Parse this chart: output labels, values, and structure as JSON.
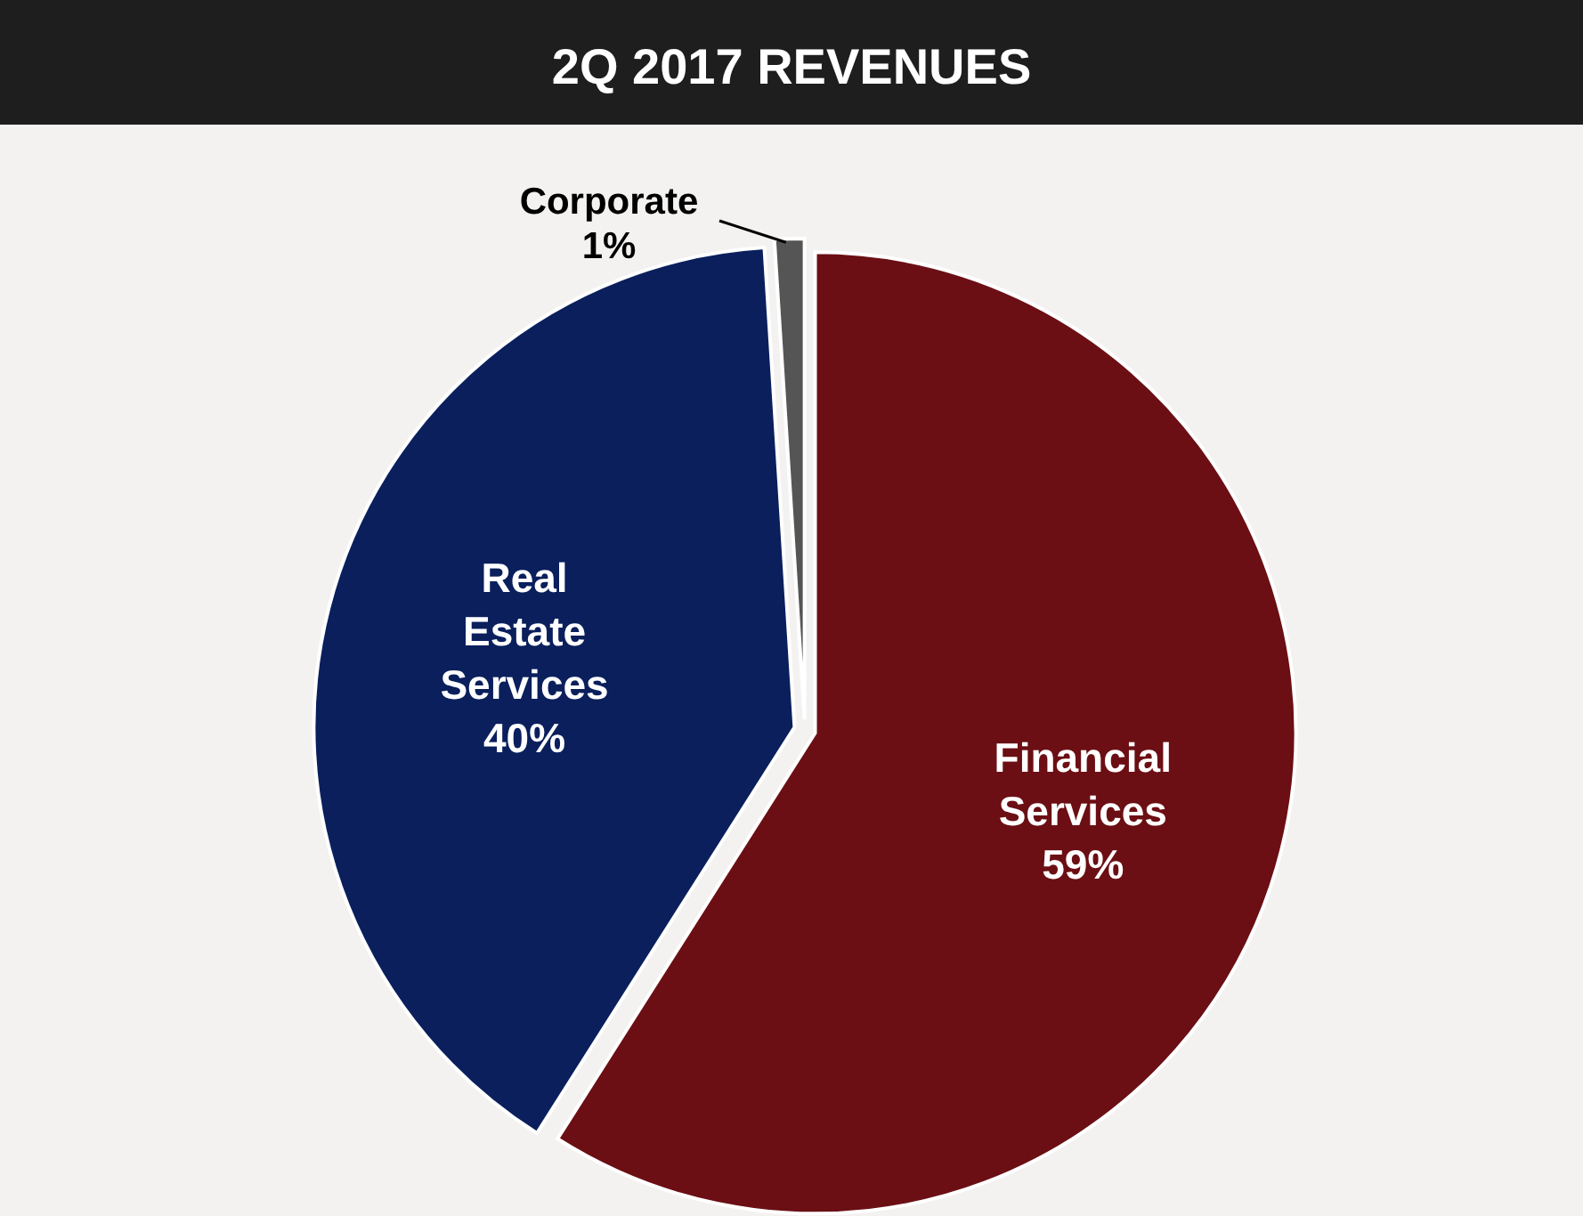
{
  "chart_data": {
    "type": "pie",
    "title": "2Q 2017 REVENUES",
    "categories": [
      "Financial Services",
      "Real Estate Services",
      "Corporate"
    ],
    "values": [
      59,
      40,
      1
    ],
    "colors": [
      "#6b0f14",
      "#0a1f5c",
      "#555555"
    ],
    "value_labels": [
      "59%",
      "40%",
      "1%"
    ]
  }
}
